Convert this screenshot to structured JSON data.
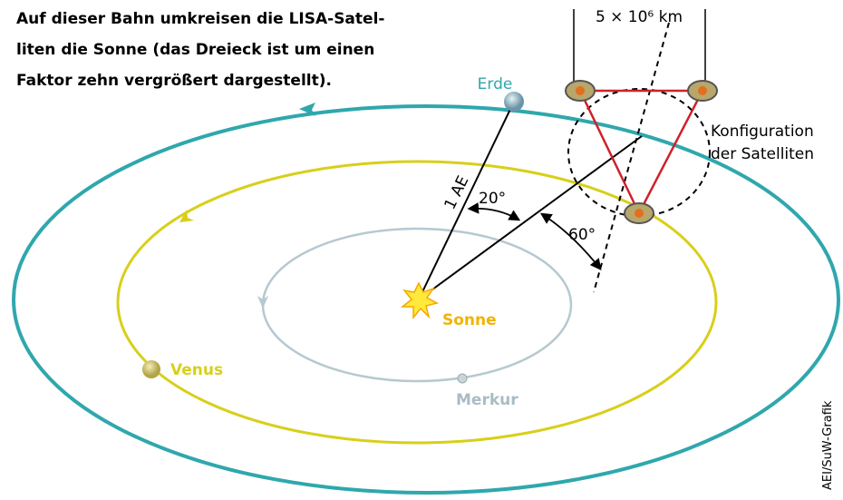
{
  "title": {
    "lines": [
      "Auf dieser Bahn umkreisen die LISA-Satel-",
      "liten die Sonne (das Dreieck ist um einen",
      "Faktor zehn vergrößert dargestellt)."
    ]
  },
  "labels": {
    "distance": "5 × 10⁶ km",
    "earth": "Erde",
    "configuration": [
      "Konfiguration",
      "der Satelliten"
    ],
    "au": "1 AE",
    "angle_small": "20°",
    "angle_large": "60°",
    "sun": "Sonne",
    "venus": "Venus",
    "mercury": "Merkur",
    "credit": "AEI/SuW-Grafik"
  }
}
